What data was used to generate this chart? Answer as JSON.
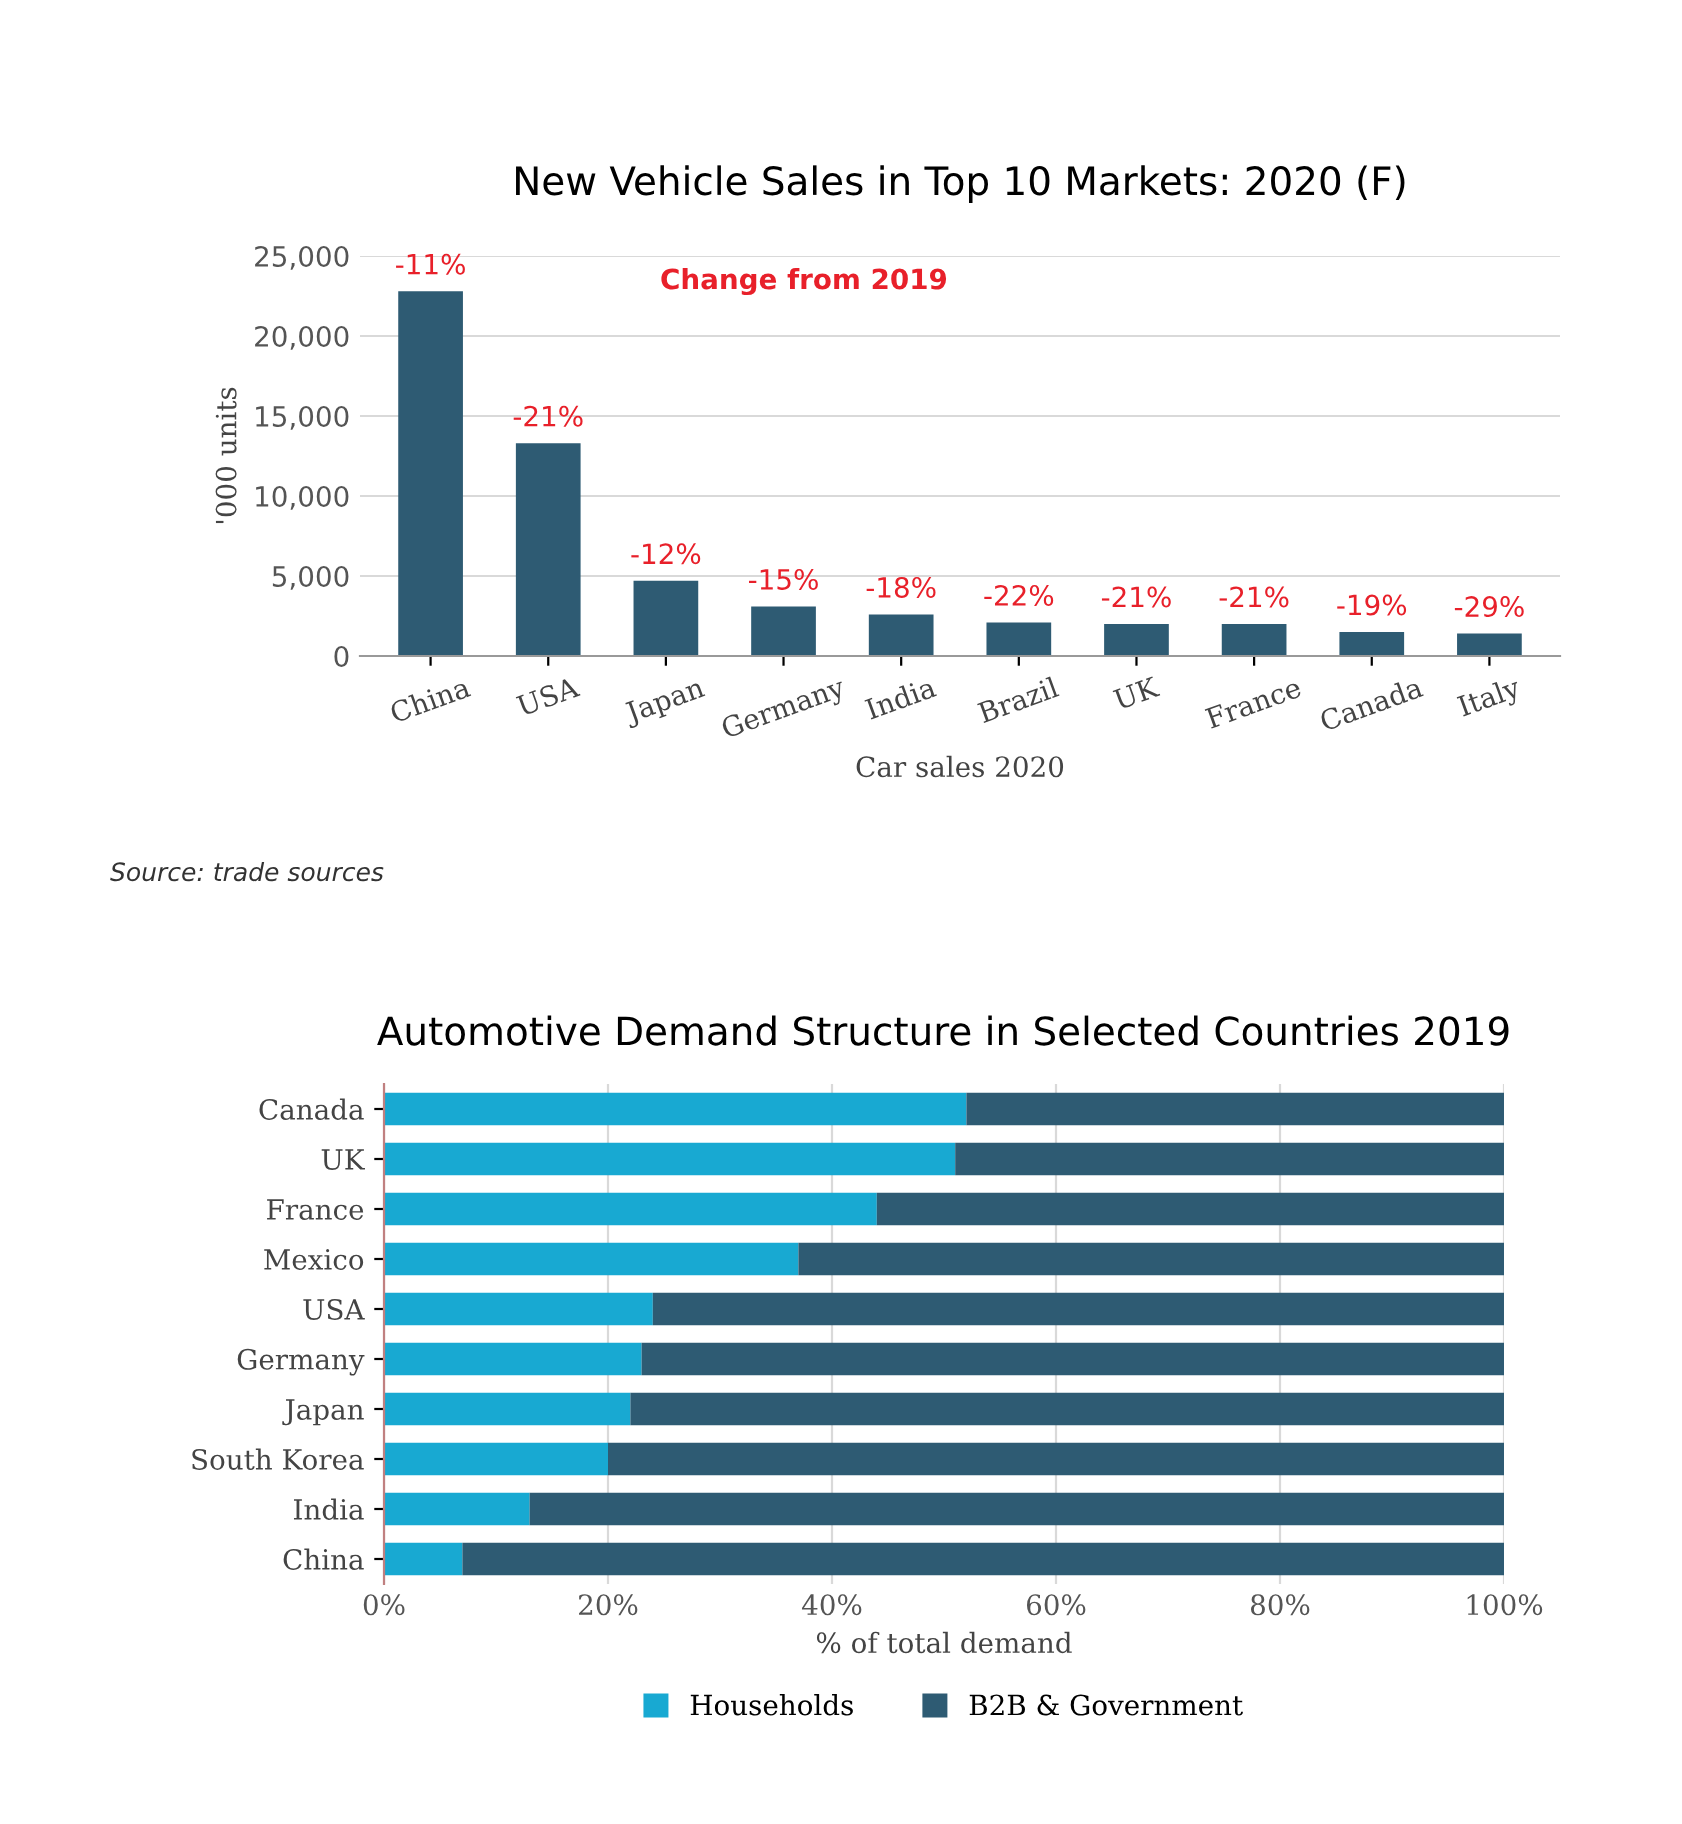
{
  "chart_data": [
    {
      "type": "bar",
      "title": "New Vehicle Sales in Top 10 Markets: 2020 (F)",
      "xlabel": "Car sales 2020",
      "ylabel": "'000 units",
      "categories": [
        "China",
        "USA",
        "Japan",
        "Germany",
        "India",
        "Brazil",
        "UK",
        "France",
        "Canada",
        "Italy"
      ],
      "values": [
        22800,
        13300,
        4700,
        3100,
        2600,
        2100,
        2000,
        2000,
        1500,
        1400
      ],
      "color": "#2e5b73",
      "ylim": [
        0,
        25000
      ],
      "yticks": [
        {
          "value": 0,
          "label": "0"
        },
        {
          "value": 5000,
          "label": "5,000"
        },
        {
          "value": 10000,
          "label": "10,000"
        },
        {
          "value": 15000,
          "label": "15,000"
        },
        {
          "value": 20000,
          "label": "20,000"
        },
        {
          "value": 25000,
          "label": "25,000"
        }
      ],
      "grid": "y",
      "legend": false,
      "annotations": [
        "Change from 2019",
        "Source: trade sources",
        {
          "text": "-11%",
          "x": "China",
          "y": 22800
        },
        {
          "text": "-21%",
          "x": "USA",
          "y": 13300
        },
        {
          "text": "-12%",
          "x": "Japan",
          "y": 4700
        },
        {
          "text": "-15%",
          "x": "Germany",
          "y": 3100
        },
        {
          "text": "-18%",
          "x": "India",
          "y": 2600
        },
        {
          "text": "-22%",
          "x": "Brazil",
          "y": 2100
        },
        {
          "text": "-21%",
          "x": "UK",
          "y": 2000
        },
        {
          "text": "-21%",
          "x": "France",
          "y": 2000
        },
        {
          "text": "-19%",
          "x": "Canada",
          "y": 1500
        },
        {
          "text": "-29%",
          "x": "Italy",
          "y": 1400
        }
      ]
    },
    {
      "type": "bar",
      "orientation": "horizontal",
      "stacked": true,
      "title": "Automotive Demand Structure in Selected Countries 2019",
      "xlabel": "% of total demand",
      "categories": [
        "Canada",
        "UK",
        "France",
        "Mexico",
        "USA",
        "Germany",
        "Japan",
        "South Korea",
        "India",
        "China"
      ],
      "series": [
        {
          "name": "Households",
          "color": "#18a9d2",
          "values": [
            52,
            51,
            44,
            37,
            24,
            23,
            22,
            20,
            13,
            7
          ]
        },
        {
          "name": "B2B & Government",
          "color": "#2e5b73",
          "values": [
            48,
            49,
            56,
            63,
            76,
            77,
            78,
            80,
            87,
            93
          ]
        }
      ],
      "xlim": [
        0,
        100
      ],
      "xticks": [
        {
          "value": 0,
          "label": "0%"
        },
        {
          "value": 20,
          "label": "20%"
        },
        {
          "value": 40,
          "label": "40%"
        },
        {
          "value": 60,
          "label": "60%"
        },
        {
          "value": 80,
          "label": "80%"
        },
        {
          "value": 100,
          "label": "100%"
        }
      ],
      "grid": "x",
      "legend": "bottom"
    }
  ]
}
